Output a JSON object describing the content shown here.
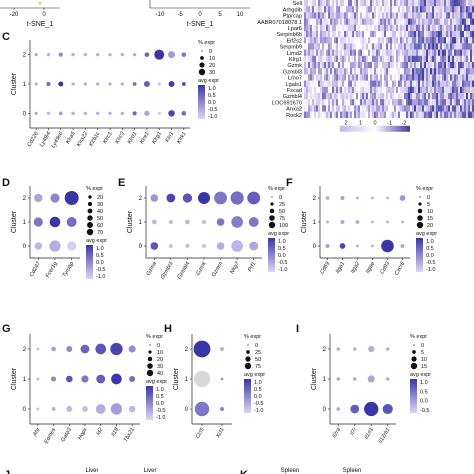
{
  "top_strip": {
    "left_ticks": [
      "-20",
      "0"
    ],
    "left_xlabel": "t-SNE_1",
    "mid_ticks": [
      "-10",
      "-5",
      "0",
      "5",
      "10"
    ],
    "mid_xlabel": "t-SNE_1"
  },
  "heatmap": {
    "genes": [
      "Sell",
      "Arhgdib",
      "Ptprcap",
      "AABR07018078.1",
      "Lpar6",
      "Serpinb6b",
      "Eif2s2",
      "Serpinb9",
      "Limd2",
      "Klrg1",
      "Gzmk",
      "Gzmbl3",
      "Lmo7",
      "Lgals1",
      "Fscad",
      "Gzmbl4",
      "LOC691670",
      "Anxa2",
      "Rock2"
    ],
    "legend_ticks": [
      "2",
      "1",
      "0",
      "-1",
      "-2"
    ],
    "colors": {
      "high": "#3d3d9e",
      "mid": "#ffffff",
      "low": "#c4b5e8"
    }
  },
  "dot_colors": {
    "high": "#3a36a6",
    "low": "#ddd6f3",
    "empty": "#d8d8d8"
  },
  "chart_data": [
    {
      "panel": "C",
      "type": "dotplot",
      "ylabel": "Cluster",
      "clusters": [
        "2",
        "1",
        "0"
      ],
      "genes": [
        "Cd226",
        "Ly49i4",
        "Ly49s6",
        "Klra5",
        "Klra22",
        "Klrb1c",
        "Klrc1",
        "Klrc3",
        "Klrd1",
        "Klre1",
        "Klrg1",
        "Klri1",
        "Klrk1"
      ],
      "pct_legend": {
        "title": "% expr",
        "values": [
          0,
          10,
          20,
          30
        ]
      },
      "avg_legend": {
        "title": "avg expr",
        "ticks": [
          "1.0",
          "0.5",
          "0.0",
          "-0.5",
          "-1.0"
        ]
      },
      "pct": [
        [
          3,
          3,
          5,
          3,
          3,
          3,
          3,
          3,
          3,
          6,
          28,
          14,
          6
        ],
        [
          3,
          5,
          7,
          3,
          3,
          3,
          3,
          3,
          4,
          10,
          3,
          10,
          4
        ],
        [
          3,
          3,
          4,
          3,
          3,
          3,
          3,
          3,
          5,
          8,
          3,
          12,
          6
        ]
      ],
      "avg": [
        [
          -0.5,
          -0.5,
          0.0,
          -0.5,
          -0.5,
          -0.5,
          -0.5,
          -0.5,
          -0.4,
          0.4,
          1.0,
          -0.3,
          0.2
        ],
        [
          -0.5,
          0.3,
          1.0,
          -0.5,
          -0.5,
          -0.5,
          -0.5,
          -0.5,
          0.3,
          0.5,
          -0.8,
          0.9,
          0.8
        ],
        [
          -0.5,
          -0.6,
          -0.3,
          -0.5,
          -0.5,
          -0.5,
          -0.5,
          -0.5,
          0.4,
          -0.4,
          -0.9,
          0.8,
          0.3
        ]
      ]
    },
    {
      "panel": "D",
      "type": "dotplot",
      "ylabel": "Cluster",
      "clusters": [
        "2",
        "1",
        "0"
      ],
      "genes": [
        "Cd247",
        "Fcer1g",
        "Tyrobp"
      ],
      "pct_legend": {
        "title": "% expr",
        "values": [
          20,
          30,
          40,
          50,
          60,
          70
        ]
      },
      "avg_legend": {
        "title": "avg expr",
        "ticks": [
          "1.0",
          "0.5",
          "0.0",
          "-0.5",
          "-1.0"
        ]
      },
      "pct": [
        [
          25,
          30,
          70
        ],
        [
          30,
          40,
          35
        ],
        [
          20,
          45,
          30
        ]
      ],
      "avg": [
        [
          -0.4,
          0.0,
          1.0
        ],
        [
          0.2,
          1.0,
          0.3
        ],
        [
          -0.6,
          -0.5,
          -0.9
        ]
      ]
    },
    {
      "panel": "E",
      "type": "dotplot",
      "ylabel": "Cluster",
      "clusters": [
        "2",
        "1",
        "0"
      ],
      "genes": [
        "Gzma",
        "Gzmbl3",
        "Gzmbl4",
        "Gzmk",
        "Gzmm",
        "Nkg7",
        "Prf1"
      ],
      "pct_legend": {
        "title": "% expr",
        "values": [
          0,
          25,
          50,
          75,
          100
        ]
      },
      "avg_legend": {
        "title": "avg expr",
        "ticks": [
          "1.0",
          "0.5",
          "0.0",
          "-0.5",
          "-1.0"
        ]
      },
      "pct": [
        [
          30,
          40,
          45,
          75,
          85,
          90,
          85
        ],
        [
          12,
          10,
          12,
          10,
          30,
          70,
          50
        ],
        [
          30,
          8,
          10,
          10,
          30,
          70,
          40
        ]
      ],
      "avg": [
        [
          -0.2,
          0.8,
          0.6,
          1.0,
          0.2,
          0.3,
          0.5
        ],
        [
          -0.6,
          -0.7,
          -0.6,
          -0.7,
          0.2,
          0.1,
          0.2
        ],
        [
          0.6,
          -0.7,
          -0.7,
          -0.8,
          -0.5,
          -0.6,
          -0.4
        ]
      ]
    },
    {
      "panel": "F",
      "type": "dotplot",
      "ylabel": "Cluster",
      "clusters": [
        "2",
        "1",
        "0"
      ],
      "genes": [
        "Cd69",
        "Itga1",
        "Itga2",
        "Itgae",
        "Cd93",
        "Cxcr6"
      ],
      "pct_legend": {
        "title": "% expr",
        "values": [
          0,
          5,
          10,
          15,
          20
        ]
      },
      "avg_legend": {
        "title": "avg expr",
        "ticks": [
          "1.0",
          "0.5",
          "0.0",
          "-0.5",
          "-1.0"
        ]
      },
      "pct": [
        [
          2,
          2,
          1,
          1,
          1,
          4
        ],
        [
          1,
          2,
          2,
          1,
          1,
          1
        ],
        [
          2,
          4,
          1,
          1,
          20,
          2
        ]
      ],
      "avg": [
        [
          -0.6,
          -0.3,
          -0.5,
          -0.5,
          -0.5,
          -0.2
        ],
        [
          -0.5,
          -0.4,
          -0.5,
          -0.5,
          -0.5,
          -0.5
        ],
        [
          -0.3,
          0.8,
          -0.5,
          -0.5,
          1.0,
          -0.4
        ]
      ]
    },
    {
      "panel": "G",
      "type": "dotplot",
      "ylabel": "Cluster",
      "clusters": [
        "2",
        "1",
        "0"
      ],
      "genes": [
        "Ahr",
        "Eomes",
        "Gata3",
        "Hopx",
        "Id2",
        "Il18",
        "Tbx21"
      ],
      "pct_legend": {
        "title": "% expr",
        "values": [
          0,
          10,
          20,
          30,
          40
        ]
      },
      "avg_legend": {
        "title": "avg expr",
        "ticks": [
          "1.0",
          "0.5",
          "0.0",
          "-0.5",
          "-1.0"
        ]
      },
      "pct": [
        [
          2,
          5,
          8,
          18,
          26,
          35,
          12
        ],
        [
          2,
          6,
          10,
          12,
          18,
          26,
          8
        ],
        [
          2,
          4,
          8,
          8,
          22,
          30,
          10
        ]
      ],
      "avg": [
        [
          -0.7,
          -0.3,
          0.0,
          0.4,
          0.6,
          0.8,
          -0.1
        ],
        [
          -0.6,
          0.0,
          0.6,
          0.2,
          0.5,
          1.0,
          0.3
        ],
        [
          -0.7,
          -0.6,
          -0.6,
          -0.7,
          -0.5,
          -0.3,
          -0.6
        ]
      ]
    },
    {
      "panel": "H",
      "type": "dotplot",
      "ylabel": "Cluster",
      "clusters": [
        "2",
        "1",
        "0"
      ],
      "genes": [
        "Ccl5",
        "Xcl1"
      ],
      "pct_legend": {
        "title": "% expr",
        "values": [
          0,
          25,
          50,
          75
        ]
      },
      "avg_legend": {
        "title": "avg expr",
        "ticks": [
          "1.0",
          "0.5",
          "0.0",
          "-0.5",
          "-1.0"
        ]
      },
      "pct": [
        [
          75,
          4
        ],
        [
          70,
          2
        ],
        [
          55,
          4
        ]
      ],
      "avg": [
        [
          1.0,
          -0.5
        ],
        [
          -1.2,
          -0.2
        ],
        [
          0.2,
          0.1
        ]
      ]
    },
    {
      "panel": "I",
      "type": "dotplot",
      "ylabel": "Cluster",
      "clusters": [
        "2",
        "1",
        "0"
      ],
      "genes": [
        "Il2ra",
        "Il7r",
        "Il1rl1",
        "Il12rb1"
      ],
      "pct_legend": {
        "title": "% expr",
        "values": [
          0,
          5,
          10,
          15
        ]
      },
      "avg_legend": {
        "title": "avg expr",
        "ticks": [
          "1.0",
          "0.5",
          "0.0",
          "-0.5"
        ]
      },
      "pct": [
        [
          1,
          1,
          3,
          1
        ],
        [
          1,
          1,
          4,
          1
        ],
        [
          1,
          6,
          16,
          8
        ]
      ],
      "avg": [
        [
          -0.5,
          -0.5,
          -0.5,
          -0.5
        ],
        [
          -0.5,
          -0.4,
          -0.4,
          -0.5
        ],
        [
          -0.4,
          0.5,
          1.0,
          0.6
        ]
      ]
    }
  ],
  "bottom_strip": {
    "left_letter": "J",
    "labels": [
      "Liver",
      "Liver",
      "Spleen",
      "Spleen"
    ],
    "right_letter": "K"
  }
}
